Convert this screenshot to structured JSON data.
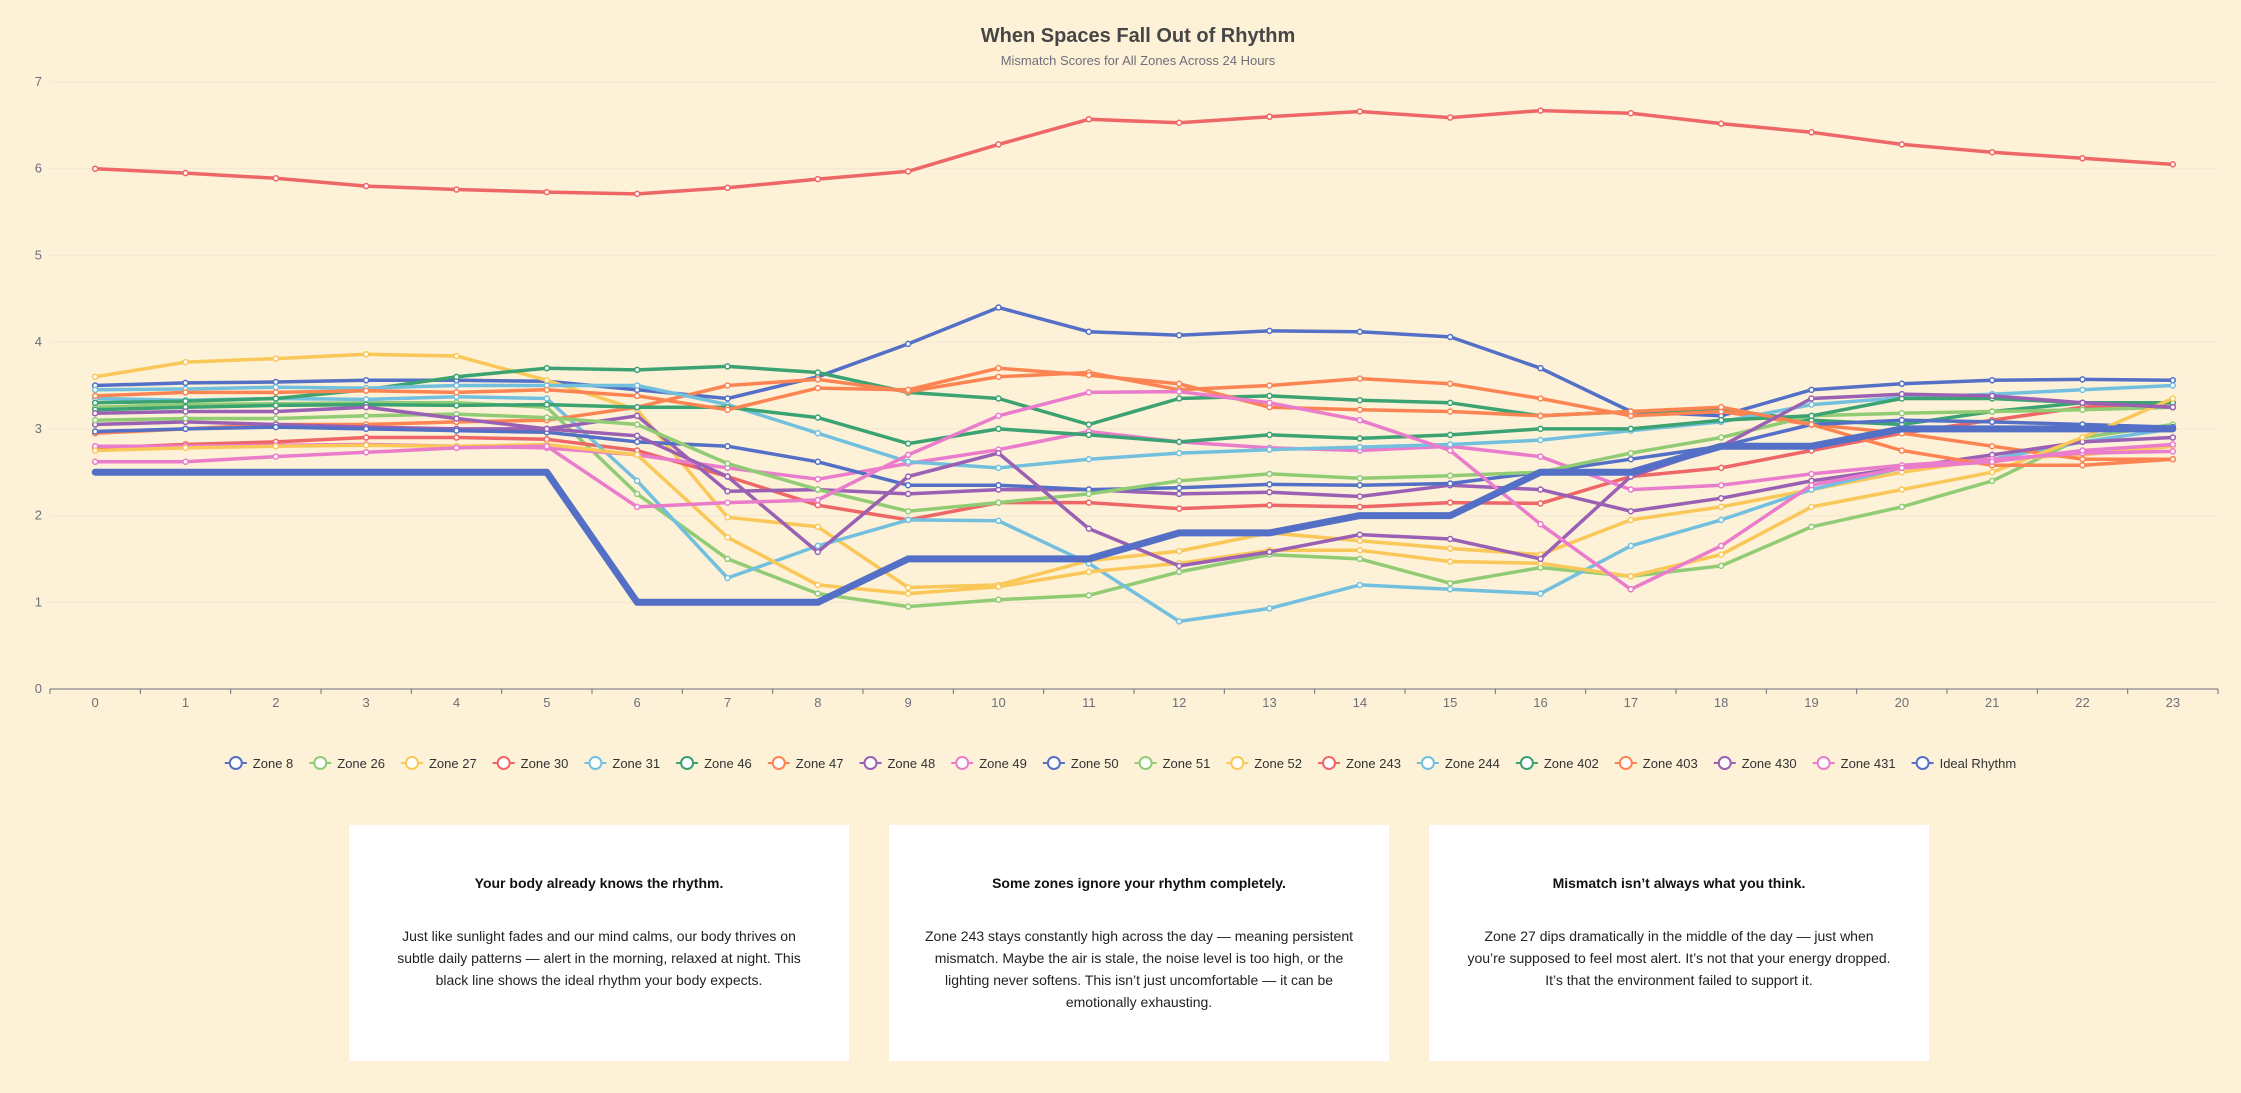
{
  "chart_data": {
    "type": "line",
    "title": "When Spaces Fall Out of Rhythm",
    "subtitle": "Mismatch Scores for All Zones Across 24 Hours",
    "xlabel": "",
    "ylabel": "",
    "x": [
      0,
      1,
      2,
      3,
      4,
      5,
      6,
      7,
      8,
      9,
      10,
      11,
      12,
      13,
      14,
      15,
      16,
      17,
      18,
      19,
      20,
      21,
      22,
      23
    ],
    "ylim": [
      0,
      7
    ],
    "yticks": [
      0,
      1,
      2,
      3,
      4,
      5,
      6,
      7
    ],
    "grid": true,
    "legend_position": "bottom",
    "series": [
      {
        "name": "Zone 8",
        "color": "#5470c6",
        "values": [
          3.5,
          3.53,
          3.54,
          3.56,
          3.56,
          3.55,
          3.45,
          3.35,
          3.6,
          3.98,
          4.4,
          4.12,
          4.08,
          4.13,
          4.12,
          4.06,
          3.7,
          3.2,
          3.15,
          3.45,
          3.52,
          3.56,
          3.57,
          3.56
        ]
      },
      {
        "name": "Zone 26",
        "color": "#91cc75",
        "values": [
          3.25,
          3.28,
          3.29,
          3.3,
          3.3,
          3.25,
          2.25,
          1.5,
          1.1,
          0.95,
          1.03,
          1.08,
          1.35,
          1.55,
          1.5,
          1.22,
          1.4,
          1.3,
          1.42,
          1.87,
          2.1,
          2.4,
          2.9,
          3.05
        ]
      },
      {
        "name": "Zone 27",
        "color": "#fac858",
        "values": [
          3.6,
          3.77,
          3.81,
          3.86,
          3.84,
          3.56,
          3.22,
          1.98,
          1.87,
          1.17,
          1.2,
          1.48,
          1.59,
          1.8,
          1.71,
          1.62,
          1.55,
          1.95,
          2.1,
          2.3,
          2.5,
          2.65,
          2.7,
          2.8
        ]
      },
      {
        "name": "Zone 30",
        "color": "#ee6666",
        "values": [
          2.78,
          2.82,
          2.85,
          2.9,
          2.9,
          2.88,
          2.75,
          2.45,
          2.12,
          1.95,
          2.15,
          2.15,
          2.08,
          2.12,
          2.1,
          2.15,
          2.14,
          2.45,
          2.55,
          2.75,
          2.95,
          3.1,
          3.25,
          3.3
        ]
      },
      {
        "name": "Zone 31",
        "color": "#73c0de",
        "values": [
          3.35,
          3.33,
          3.35,
          3.34,
          3.37,
          3.35,
          2.4,
          1.28,
          1.65,
          1.95,
          1.94,
          1.45,
          0.78,
          0.93,
          1.2,
          1.15,
          1.1,
          1.65,
          1.95,
          2.3,
          2.55,
          2.65,
          2.85,
          3.0
        ]
      },
      {
        "name": "Zone 46",
        "color": "#3ba272",
        "values": [
          3.3,
          3.32,
          3.35,
          3.45,
          3.6,
          3.7,
          3.68,
          3.72,
          3.65,
          3.42,
          3.35,
          3.05,
          3.35,
          3.38,
          3.33,
          3.3,
          3.15,
          3.2,
          3.22,
          3.1,
          3.05,
          3.2,
          3.3,
          3.3
        ]
      },
      {
        "name": "Zone 47",
        "color": "#fc8452",
        "values": [
          2.95,
          3.0,
          3.05,
          3.05,
          3.08,
          3.1,
          3.25,
          3.5,
          3.57,
          3.43,
          3.6,
          3.65,
          3.45,
          3.5,
          3.58,
          3.52,
          3.35,
          3.15,
          3.2,
          3.05,
          2.95,
          2.8,
          2.65,
          2.65
        ]
      },
      {
        "name": "Zone 48",
        "color": "#9a60b4",
        "values": [
          3.05,
          3.08,
          3.05,
          3.02,
          3.0,
          3.0,
          3.15,
          2.28,
          2.3,
          2.25,
          2.3,
          2.3,
          2.25,
          2.27,
          2.22,
          2.35,
          2.3,
          2.05,
          2.2,
          2.4,
          2.55,
          2.7,
          2.85,
          2.9
        ]
      },
      {
        "name": "Zone 49",
        "color": "#ea7ccc",
        "values": [
          2.8,
          2.8,
          2.81,
          2.82,
          2.8,
          2.78,
          2.7,
          2.55,
          2.42,
          2.6,
          2.76,
          2.97,
          2.85,
          2.78,
          2.75,
          2.8,
          2.68,
          2.3,
          2.35,
          2.48,
          2.58,
          2.65,
          2.72,
          2.74
        ]
      },
      {
        "name": "Zone 50",
        "color": "#5470c6",
        "values": [
          2.97,
          3.0,
          3.02,
          3.0,
          2.98,
          2.96,
          2.85,
          2.8,
          2.62,
          2.35,
          2.35,
          2.3,
          2.32,
          2.36,
          2.35,
          2.37,
          2.5,
          2.65,
          2.8,
          3.05,
          3.1,
          3.08,
          3.05,
          3.02
        ]
      },
      {
        "name": "Zone 51",
        "color": "#91cc75",
        "values": [
          3.1,
          3.12,
          3.12,
          3.15,
          3.17,
          3.13,
          3.05,
          2.6,
          2.3,
          2.05,
          2.15,
          2.25,
          2.4,
          2.48,
          2.43,
          2.46,
          2.5,
          2.72,
          2.9,
          3.15,
          3.18,
          3.2,
          3.22,
          3.25
        ]
      },
      {
        "name": "Zone 52",
        "color": "#fac858",
        "values": [
          2.75,
          2.78,
          2.8,
          2.81,
          2.8,
          2.82,
          2.7,
          1.75,
          1.2,
          1.1,
          1.18,
          1.35,
          1.45,
          1.6,
          1.6,
          1.47,
          1.45,
          1.3,
          1.55,
          2.1,
          2.3,
          2.5,
          2.9,
          3.35
        ]
      },
      {
        "name": "Zone 243",
        "color": "#ee6666",
        "values": [
          6.0,
          5.95,
          5.89,
          5.8,
          5.76,
          5.73,
          5.71,
          5.78,
          5.88,
          5.97,
          6.28,
          6.57,
          6.53,
          6.6,
          6.66,
          6.59,
          6.67,
          6.64,
          6.52,
          6.42,
          6.28,
          6.19,
          6.12,
          6.05
        ]
      },
      {
        "name": "Zone 244",
        "color": "#73c0de",
        "values": [
          3.45,
          3.46,
          3.48,
          3.47,
          3.5,
          3.5,
          3.5,
          3.28,
          2.95,
          2.62,
          2.55,
          2.65,
          2.72,
          2.76,
          2.79,
          2.82,
          2.87,
          2.98,
          3.08,
          3.28,
          3.36,
          3.4,
          3.45,
          3.5
        ]
      },
      {
        "name": "Zone 402",
        "color": "#3ba272",
        "values": [
          3.22,
          3.25,
          3.27,
          3.28,
          3.27,
          3.28,
          3.25,
          3.25,
          3.13,
          2.83,
          3.0,
          2.93,
          2.85,
          2.93,
          2.89,
          2.93,
          3.0,
          3.0,
          3.1,
          3.15,
          3.35,
          3.35,
          3.3,
          3.25
        ]
      },
      {
        "name": "Zone 403",
        "color": "#fc8452",
        "values": [
          3.38,
          3.42,
          3.42,
          3.44,
          3.42,
          3.45,
          3.38,
          3.22,
          3.47,
          3.45,
          3.7,
          3.62,
          3.52,
          3.25,
          3.22,
          3.2,
          3.15,
          3.2,
          3.25,
          3.05,
          2.75,
          2.58,
          2.58,
          2.65
        ]
      },
      {
        "name": "Zone 430",
        "color": "#9a60b4",
        "values": [
          3.18,
          3.2,
          3.2,
          3.25,
          3.12,
          3.0,
          2.92,
          2.45,
          1.58,
          2.45,
          2.72,
          1.85,
          1.42,
          1.58,
          1.78,
          1.73,
          1.5,
          2.45,
          2.8,
          3.35,
          3.4,
          3.38,
          3.3,
          3.25
        ]
      },
      {
        "name": "Zone 431",
        "color": "#ea7ccc",
        "values": [
          2.62,
          2.62,
          2.68,
          2.73,
          2.78,
          2.8,
          2.1,
          2.15,
          2.18,
          2.7,
          3.15,
          3.42,
          3.43,
          3.3,
          3.1,
          2.75,
          1.9,
          1.15,
          1.65,
          2.35,
          2.55,
          2.62,
          2.75,
          2.82
        ]
      },
      {
        "name": "Ideal Rhythm",
        "color": "#5470c6",
        "values": [
          2.5,
          2.5,
          2.5,
          2.5,
          2.5,
          2.5,
          1.0,
          1.0,
          1.0,
          1.5,
          1.5,
          1.5,
          1.8,
          1.8,
          2.0,
          2.0,
          2.5,
          2.5,
          2.8,
          2.8,
          3.0,
          3.0,
          3.0,
          3.0
        ],
        "emphasis": true
      }
    ]
  },
  "cards": [
    {
      "title": "Your body already knows the rhythm.",
      "body": "Just like sunlight fades and our mind calms, our body thrives on subtle daily patterns — alert in the morning, relaxed at night. This black line shows the ideal rhythm your body expects."
    },
    {
      "title": "Some zones ignore your rhythm completely.",
      "body": "Zone 243 stays constantly high across the day — meaning persistent mismatch. Maybe the air is stale, the noise level is too high, or the lighting never softens. This isn’t just uncomfortable — it can be emotionally exhausting."
    },
    {
      "title": "Mismatch isn’t always what you think.",
      "body": "Zone 27 dips dramatically in the middle of the day — just when you’re supposed to feel most alert. It’s not that your energy dropped. It’s that the environment failed to support it."
    }
  ]
}
